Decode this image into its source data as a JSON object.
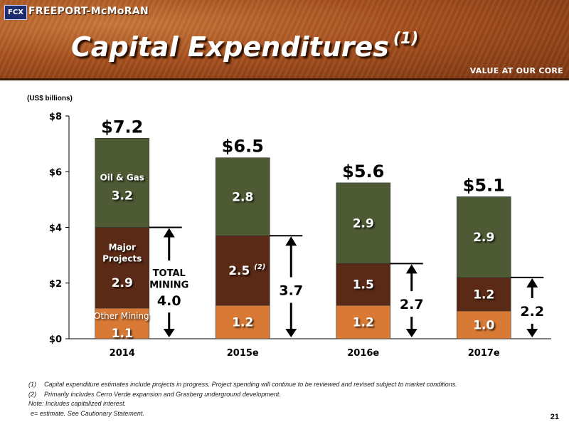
{
  "header": {
    "logo_text": "FCX",
    "brand": "FREEPORT-McMoRAN",
    "title": "Capital Expenditures",
    "title_note": "(1)",
    "tagline": "VALUE AT OUR CORE"
  },
  "units_label": "(US$ billions)",
  "chart_data": {
    "type": "bar",
    "stacked": true,
    "categories": [
      "2014",
      "2015e",
      "2016e",
      "2017e"
    ],
    "ylim": [
      0,
      8
    ],
    "yticks": [
      "$0",
      "$2",
      "$4",
      "$6",
      "$8"
    ],
    "grid": false,
    "series": [
      {
        "name": "Other Mining",
        "values": [
          1.1,
          1.2,
          1.2,
          1.0
        ],
        "labels": [
          "1.1",
          "1.2",
          "1.2",
          "1.0"
        ],
        "color": "#d87a36"
      },
      {
        "name": "Major Projects",
        "values": [
          2.9,
          2.5,
          1.5,
          1.2
        ],
        "labels": [
          "2.9",
          "2.5",
          "1.5",
          "1.2"
        ],
        "color": "#5b2a16"
      },
      {
        "name": "Oil & Gas",
        "values": [
          3.2,
          2.8,
          2.9,
          2.9
        ],
        "labels": [
          "3.2",
          "2.8",
          "2.9",
          "2.9"
        ],
        "color": "#4d5a33"
      }
    ],
    "totals": [
      "$7.2",
      "$6.5",
      "$5.6",
      "$5.1"
    ],
    "mining_totals": [
      4.0,
      3.7,
      2.7,
      2.2
    ],
    "mining_total_labels": [
      "4.0",
      "3.7",
      "2.7",
      "2.2"
    ],
    "mining_total_caption": [
      "TOTAL",
      "MINING"
    ],
    "segment_captions": {
      "oil_gas": "Oil & Gas",
      "major_projects": [
        "Major",
        "Projects"
      ],
      "other_mining": "Other Mining"
    },
    "footnote_marker": "(2)"
  },
  "notes": [
    {
      "num": "(1)",
      "text": "Capital expenditure estimates include projects in progress. Project spending will continue to be reviewed and revised subject to market conditions."
    },
    {
      "num": "(2)",
      "text": "Primarily includes Cerro Verde expansion and Grasberg underground development."
    },
    {
      "num": "",
      "text": "Note: Includes capitalized interest."
    },
    {
      "num": "",
      "text": "e= estimate. See Cautionary Statement."
    }
  ],
  "page_number": "21"
}
